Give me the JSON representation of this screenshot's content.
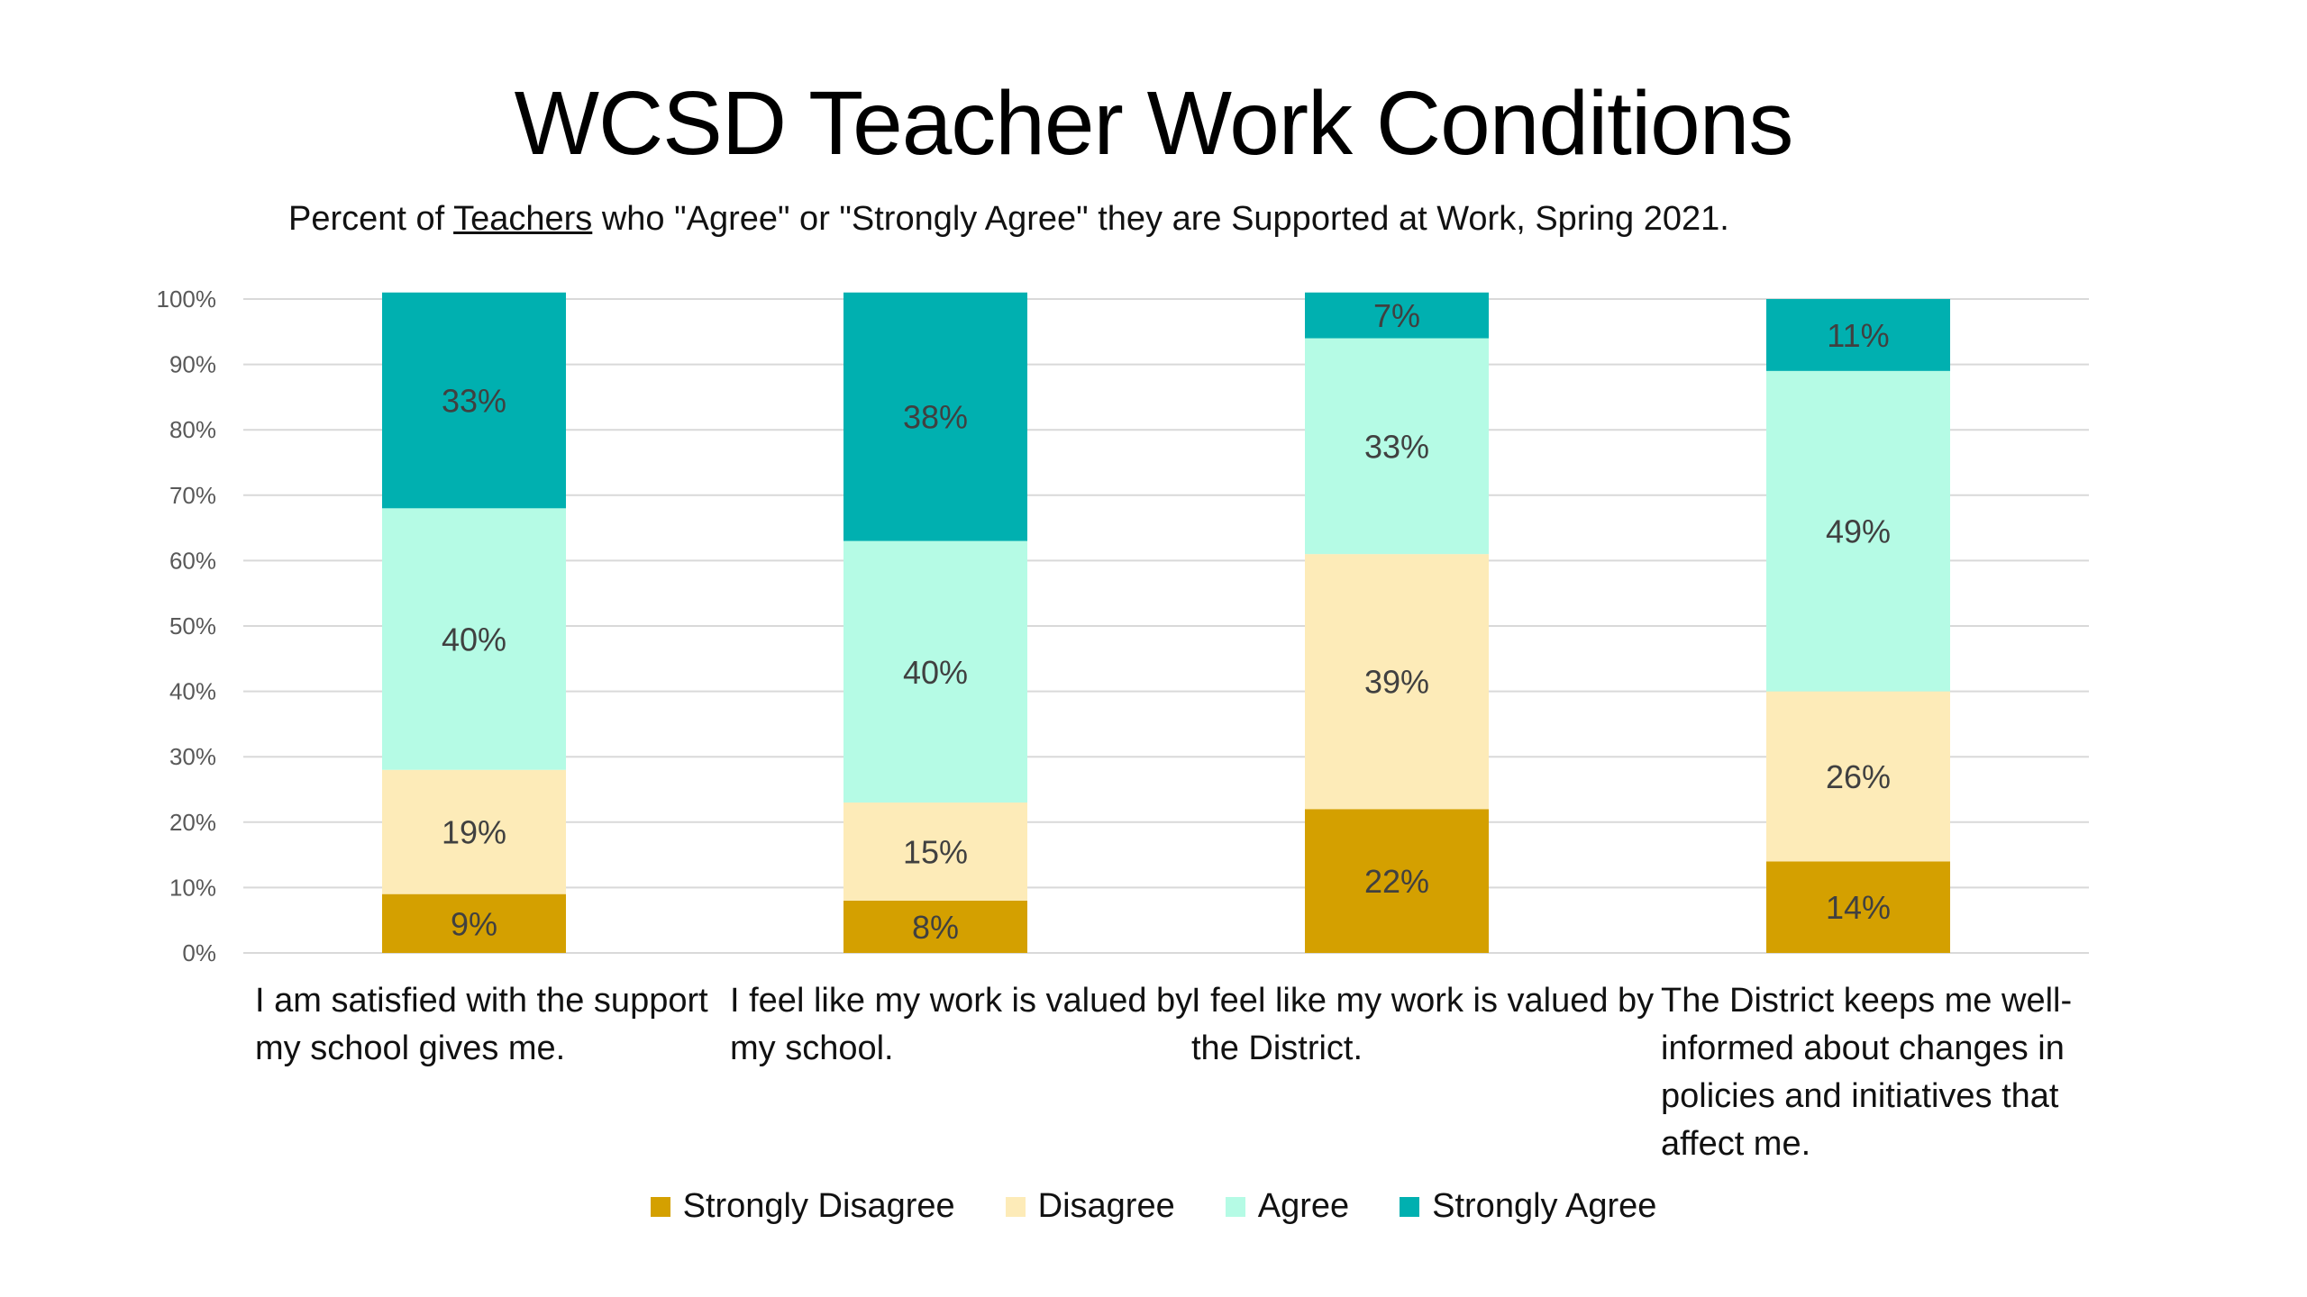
{
  "header": {
    "title": "WCSD Teacher Work Conditions",
    "subtitle_pre": "Percent of ",
    "subtitle_underlined": "Teachers",
    "subtitle_post": " who \"Agree\" or \"Strongly Agree\" they are Supported at Work, Spring 2021."
  },
  "chart_data": {
    "type": "bar",
    "stacked": true,
    "title": "WCSD Teacher Work Conditions",
    "subtitle": "Percent of Teachers who \"Agree\" or \"Strongly Agree\" they are Supported at Work, Spring 2021.",
    "categories": [
      "I am satisfied with the support my school gives me.",
      "I feel like my work is valued by my school.",
      "I feel like my work is valued by the District.",
      "The District keeps me well-informed about changes in policies and initiatives that affect me."
    ],
    "y_ticks": [
      "0%",
      "10%",
      "20%",
      "30%",
      "40%",
      "50%",
      "60%",
      "70%",
      "80%",
      "90%",
      "100%"
    ],
    "ylim": [
      0,
      100
    ],
    "grid": true,
    "legend_position": "bottom",
    "series": [
      {
        "name": "Strongly Disagree",
        "color": "#D4A000",
        "values": [
          9,
          8,
          22,
          14
        ],
        "labels": [
          "9%",
          "8%",
          "22%",
          "14%"
        ]
      },
      {
        "name": "Disagree",
        "color": "#FDEBB8",
        "values": [
          19,
          15,
          39,
          26
        ],
        "labels": [
          "19%",
          "15%",
          "39%",
          "26%"
        ]
      },
      {
        "name": "Agree",
        "color": "#B5FBE5",
        "values": [
          40,
          40,
          33,
          49
        ],
        "labels": [
          "40%",
          "40%",
          "33%",
          "49%"
        ]
      },
      {
        "name": "Strongly Agree",
        "color": "#00B0B0",
        "values": [
          33,
          38,
          7,
          11
        ],
        "labels": [
          "33%",
          "38%",
          "7%",
          "11%"
        ]
      }
    ]
  }
}
